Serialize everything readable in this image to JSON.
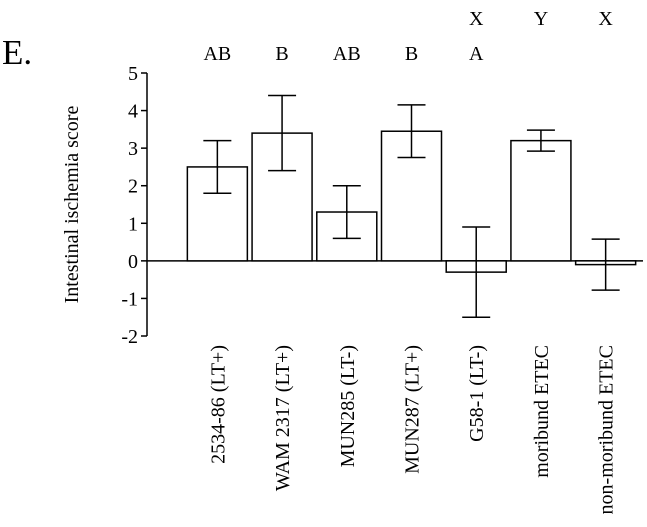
{
  "panel_label": "E.",
  "chart_data": {
    "type": "bar",
    "title": "",
    "xlabel": "",
    "ylabel": "Intestinal ischemia score",
    "ylim": [
      -2,
      5
    ],
    "yticks": [
      -2,
      -1,
      0,
      1,
      2,
      3,
      4,
      5
    ],
    "grid": false,
    "categories": [
      "2534-86 (LT+)",
      "WAM 2317 (LT+)",
      "MUN285 (LT-)",
      "MUN287 (LT+)",
      "G58-1 (LT-)",
      "moribund ETEC",
      "non-moribund ETEC"
    ],
    "values": [
      2.5,
      3.4,
      1.3,
      3.45,
      -0.3,
      3.2,
      -0.1
    ],
    "errors": [
      0.7,
      1.0,
      0.7,
      0.7,
      1.2,
      0.28,
      0.68
    ],
    "group_letters": [
      "AB",
      "B",
      "AB",
      "B",
      "A",
      "",
      ""
    ],
    "comparison_letters": [
      "",
      "",
      "",
      "",
      "X",
      "Y",
      "X"
    ]
  }
}
